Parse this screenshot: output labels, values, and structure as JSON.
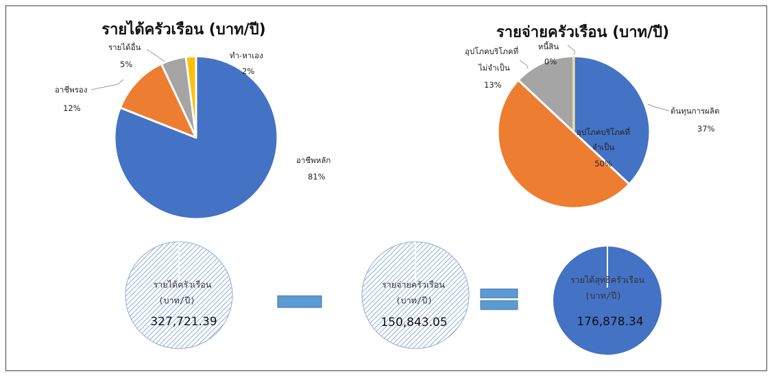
{
  "colors": {
    "blue": "#4472c4",
    "orange": "#ed7d31",
    "gray": "#a5a5a5",
    "yellow": "#ffc000",
    "operator": "#5b9bd5"
  },
  "chart_data": [
    {
      "type": "pie",
      "title": "รายได้ครัวเรือน (บาท/ปี)",
      "slices": [
        {
          "label": "อาชีพหลัก",
          "value": 81,
          "pct_label": "81%",
          "color": "#4472c4"
        },
        {
          "label": "อาชีพรอง",
          "value": 12,
          "pct_label": "12%",
          "color": "#ed7d31"
        },
        {
          "label": "รายได้อื่น",
          "value": 5,
          "pct_label": "5%",
          "color": "#a5a5a5"
        },
        {
          "label": "ทำ-หาเอง",
          "value": 2,
          "pct_label": "2%",
          "color": "#ffc000"
        }
      ]
    },
    {
      "type": "pie",
      "title": "รายจ่ายครัวเรือน (บาท/ปี)",
      "slices": [
        {
          "label": "ต้นทุนการผลิต",
          "value": 37,
          "pct_label": "37%",
          "color": "#4472c4"
        },
        {
          "label": "อุปโภคบริโภคที่จำเป็น",
          "label_lines": [
            "อุปโภคบริโภคที่",
            "จำเป็น"
          ],
          "value": 50,
          "pct_label": "50%",
          "color": "#ed7d31"
        },
        {
          "label": "อุปโภคบริโภคที่ไม่จำเป็น",
          "label_lines": [
            "อุปโภคบริโภคที่",
            "ไม่จำเป็น"
          ],
          "value": 13,
          "pct_label": "13%",
          "color": "#a5a5a5"
        },
        {
          "label": "หนี้สิน",
          "value": 0,
          "pct_label": "0%",
          "color": "#ffc000"
        }
      ]
    }
  ],
  "equation": {
    "income": {
      "label_line1": "รายได้ครัวเรือน",
      "label_line2": "(บาท/ปี)",
      "value": "327,721.39"
    },
    "expense": {
      "label_line1": "รายจ่ายครัวเรือน",
      "label_line2": "(บาท/ปี)",
      "value": "150,843.05"
    },
    "net": {
      "label_line1": "รายได้สุทธิครัวเรือน",
      "label_line2": "(บาท/ปี)",
      "value": "176,878.34"
    }
  }
}
